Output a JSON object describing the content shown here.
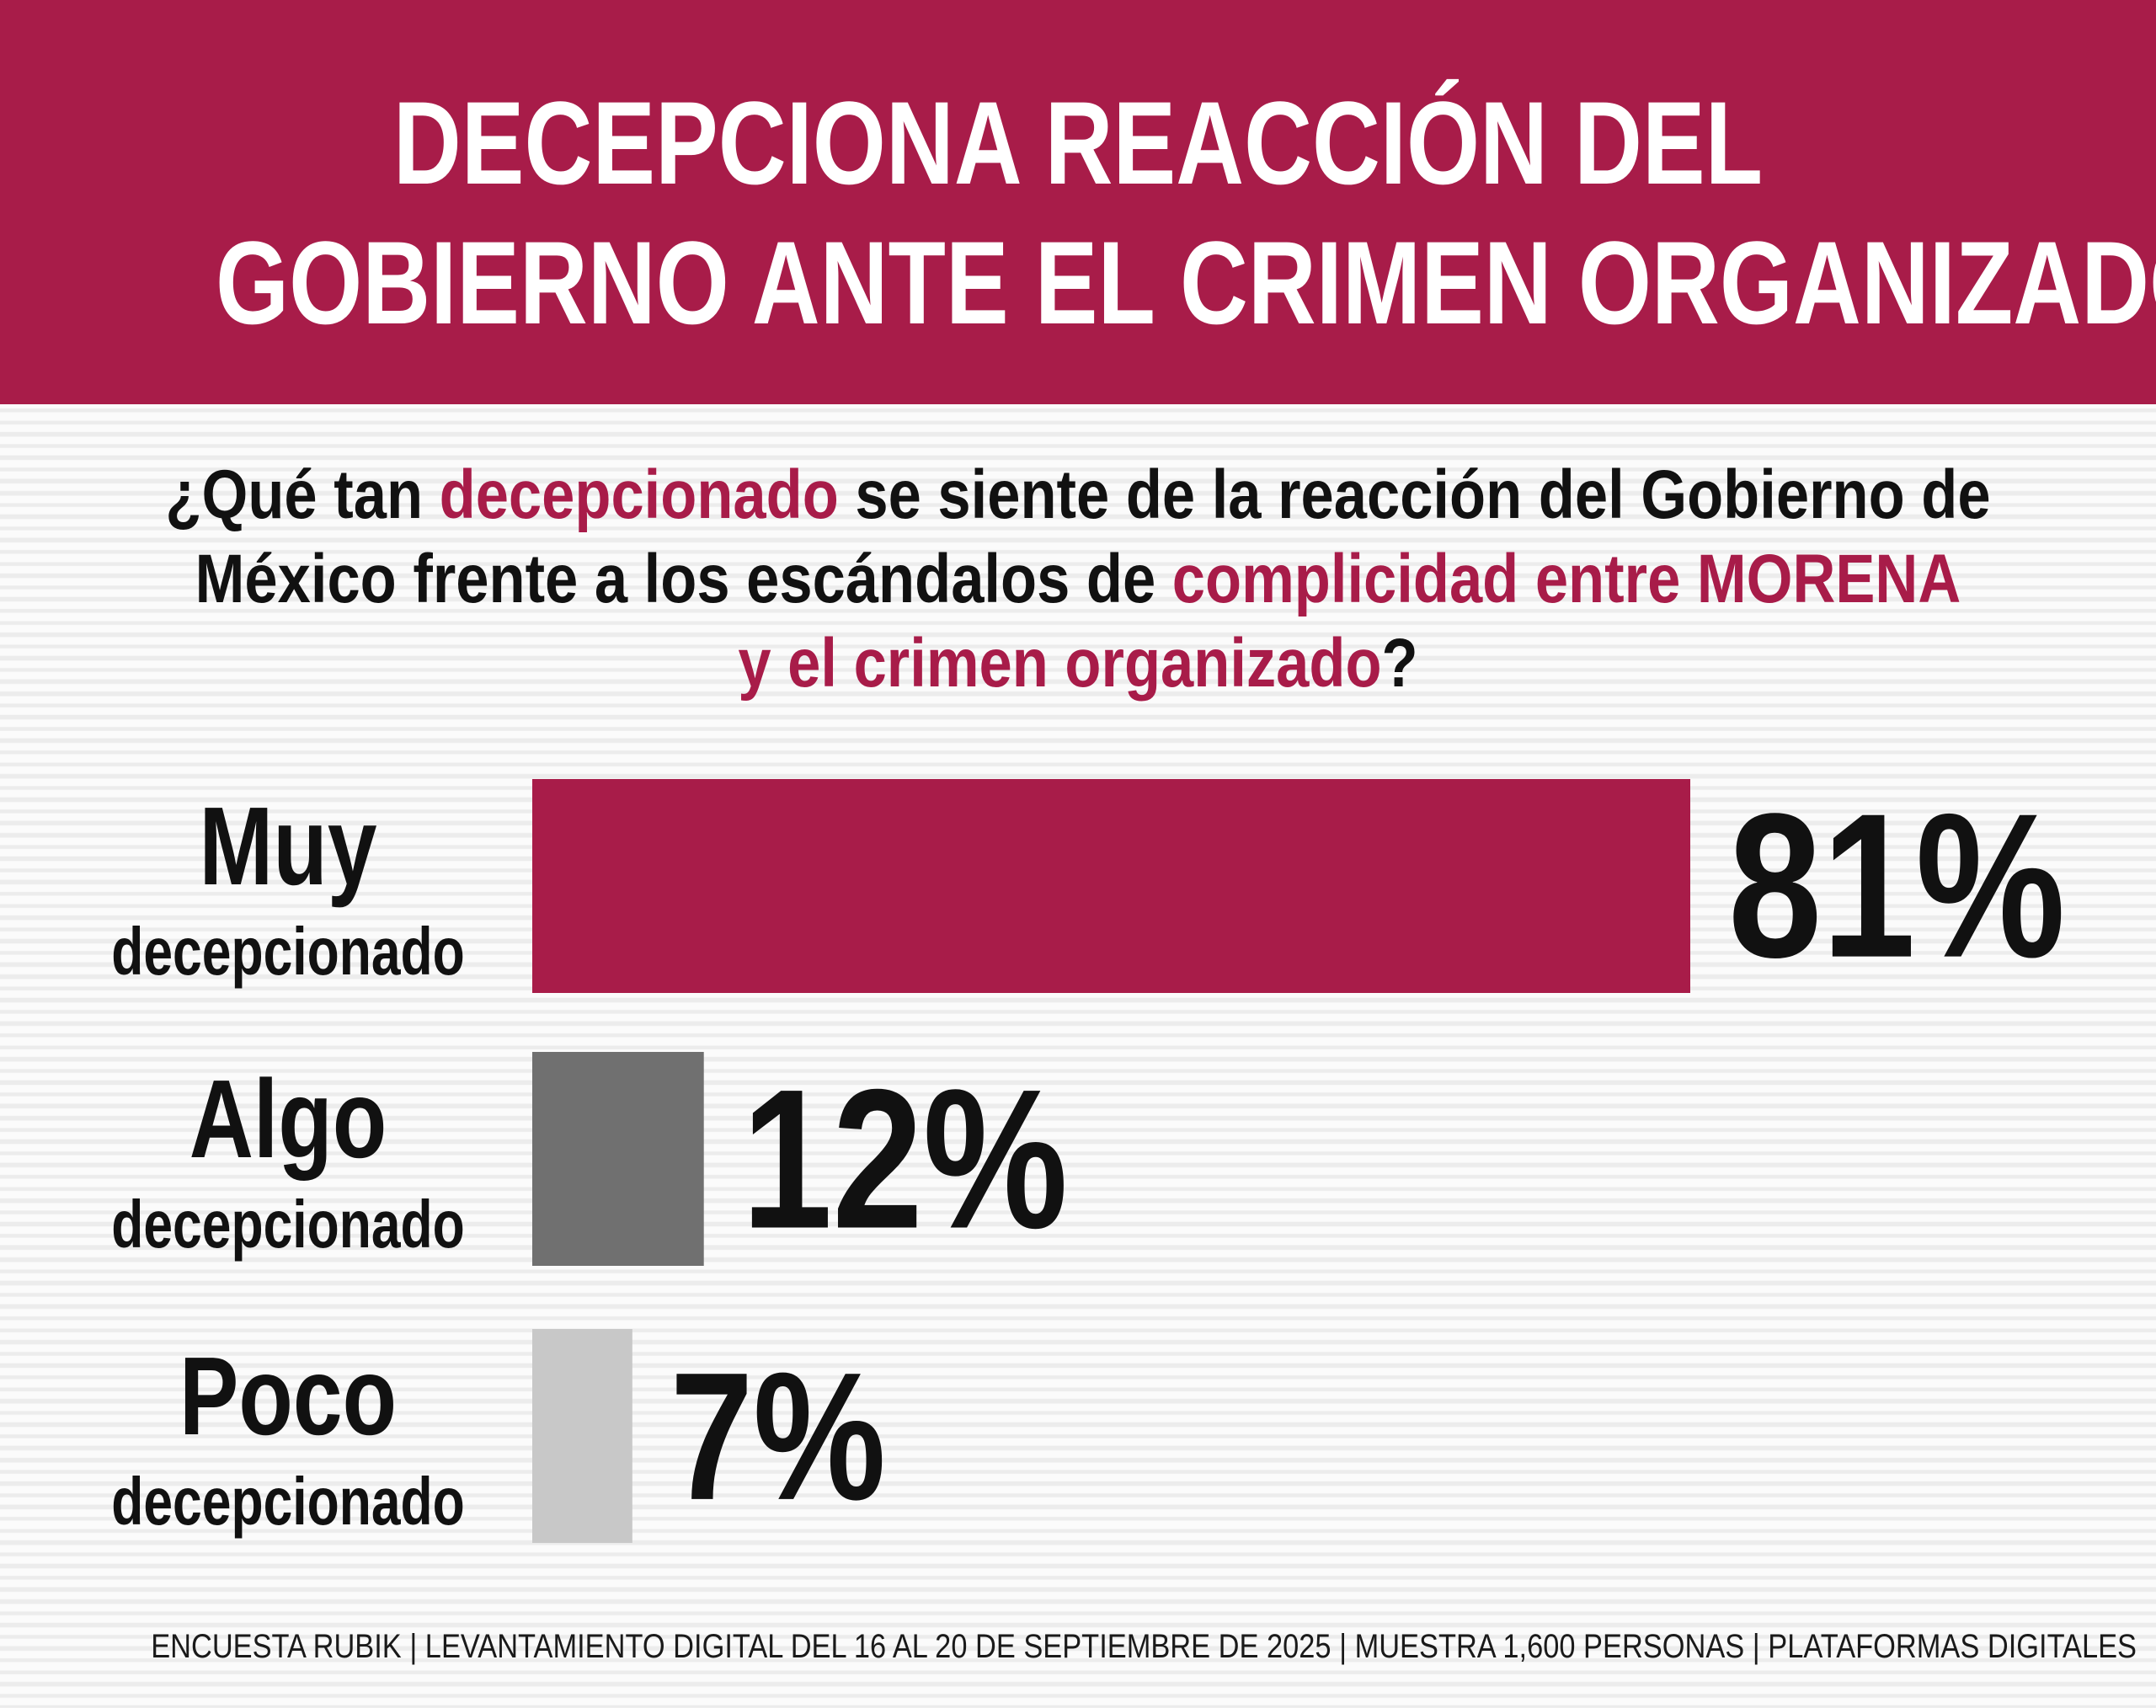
{
  "header": {
    "title_line_1": "DECEPCIONA REACCIÓN DEL",
    "title_line_2": "GOBIERNO ANTE EL CRIMEN ORGANIZADO"
  },
  "question": {
    "line_1": {
      "a": "¿Qué tan ",
      "b": "decepcionado",
      "c": " se siente de la reacción del Gobierno de"
    },
    "line_2": {
      "a": "México frente a los escándalos de ",
      "b": "complicidad entre MORENA"
    },
    "line_3": {
      "a": "y el crimen organizado",
      "b": "?"
    }
  },
  "colors": {
    "accent": "#a81c49",
    "bar_muy": "#a81c49",
    "bar_algo": "#707070",
    "bar_poco": "#c8c8c8",
    "text": "#111111"
  },
  "chart_data": {
    "type": "bar",
    "orientation": "horizontal",
    "categories": [
      {
        "line_1": "Muy",
        "line_2": "decepcionado"
      },
      {
        "line_1": "Algo",
        "line_2": "decepcionado"
      },
      {
        "line_1": "Poco",
        "line_2": "decepcionado"
      }
    ],
    "values": [
      81,
      12,
      7
    ],
    "value_labels": [
      "81%",
      "12%",
      "7%"
    ],
    "unit": "%",
    "bar_colors": [
      "#a81c49",
      "#707070",
      "#c8c8c8"
    ],
    "xlim": [
      0,
      81
    ],
    "grid": false,
    "legend": "none"
  },
  "footer": {
    "text": "ENCUESTA RUBIK | LEVANTAMIENTO DIGITAL DEL 16 AL 20 DE SEPTIEMBRE DE 2025 | MUESTRA 1,600 PERSONAS | PLATAFORMAS DIGITALES"
  }
}
